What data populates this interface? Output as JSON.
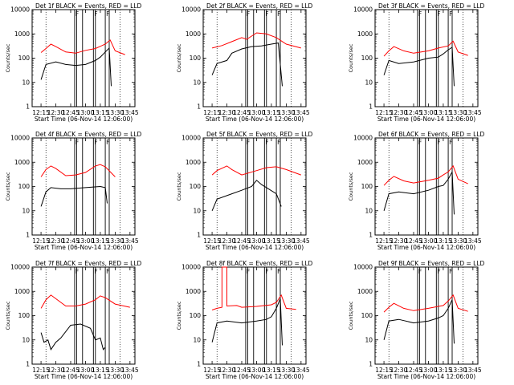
{
  "page": {
    "background": "#ffffff",
    "event_color": "#000000",
    "lld_color": "#ff0000"
  },
  "common": {
    "x_title": "Start Time (06-Nov-14 12:06:00)",
    "y_title": "Counts/sec",
    "x_ticks": [
      "12:15",
      "12:30",
      "12:45",
      "13:00",
      "13:15",
      "13:30",
      "13:45"
    ],
    "y_ticks": [
      "1",
      "10",
      "100",
      "1000",
      "10000"
    ]
  },
  "chart_data": [
    {
      "type": "line",
      "title": "Det 1f BLACK = Events, RED = LLD",
      "ylim": [
        1,
        10000
      ],
      "y_scale": "log",
      "flags": [
        "F",
        "F",
        "F"
      ],
      "series": [
        {
          "name": "Events",
          "color": "#000000",
          "x": [
            "12:15",
            "12:20",
            "12:30",
            "12:40",
            "12:50",
            "13:00",
            "13:10",
            "13:15",
            "13:20",
            "13:24",
            "13:26"
          ],
          "values": [
            13,
            55,
            70,
            55,
            50,
            55,
            80,
            110,
            180,
            260,
            7
          ]
        },
        {
          "name": "LLD",
          "color": "#ff0000",
          "x": [
            "12:15",
            "12:20",
            "12:25",
            "12:30",
            "12:40",
            "12:50",
            "13:00",
            "13:10",
            "13:20",
            "13:25",
            "13:30",
            "13:40"
          ],
          "values": [
            170,
            250,
            380,
            300,
            180,
            160,
            210,
            250,
            380,
            560,
            200,
            140
          ]
        }
      ]
    },
    {
      "type": "line",
      "title": "Det 2f BLACK = Events, RED = LLD",
      "ylim": [
        1,
        10000
      ],
      "y_scale": "log",
      "flags": [
        "F",
        "F",
        "F"
      ],
      "series": [
        {
          "name": "Events",
          "color": "#000000",
          "x": [
            "12:15",
            "12:20",
            "12:30",
            "12:35",
            "12:45",
            "12:55",
            "13:05",
            "13:15",
            "13:22",
            "13:26"
          ],
          "values": [
            20,
            60,
            80,
            160,
            240,
            300,
            320,
            380,
            420,
            7
          ]
        },
        {
          "name": "LLD",
          "color": "#ff0000",
          "x": [
            "12:15",
            "12:25",
            "12:35",
            "12:45",
            "12:50",
            "13:00",
            "13:10",
            "13:20",
            "13:30",
            "13:45"
          ],
          "values": [
            260,
            330,
            480,
            700,
            600,
            1100,
            1000,
            700,
            380,
            260
          ]
        }
      ]
    },
    {
      "type": "line",
      "title": "Det 3f BLACK = Events, RED = LLD",
      "ylim": [
        1,
        10000
      ],
      "y_scale": "log",
      "flags": [
        "F",
        "F",
        "F"
      ],
      "series": [
        {
          "name": "Events",
          "color": "#000000",
          "x": [
            "12:15",
            "12:20",
            "12:30",
            "12:45",
            "13:00",
            "13:10",
            "13:15",
            "13:20",
            "13:24",
            "13:26"
          ],
          "values": [
            20,
            80,
            60,
            70,
            100,
            110,
            150,
            220,
            280,
            7
          ]
        },
        {
          "name": "LLD",
          "color": "#ff0000",
          "x": [
            "12:15",
            "12:20",
            "12:25",
            "12:35",
            "12:45",
            "13:00",
            "13:10",
            "13:20",
            "13:25",
            "13:30",
            "13:40"
          ],
          "values": [
            120,
            200,
            300,
            200,
            160,
            200,
            260,
            320,
            500,
            180,
            130
          ]
        }
      ]
    },
    {
      "type": "line",
      "title": "Det 4f BLACK = Events, RED = LLD",
      "ylim": [
        1,
        10000
      ],
      "y_scale": "log",
      "flags": [
        "F",
        "F",
        "F"
      ],
      "series": [
        {
          "name": "Events",
          "color": "#000000",
          "x": [
            "12:15",
            "12:20",
            "12:25",
            "12:35",
            "12:45",
            "13:00",
            "13:15",
            "13:20",
            "13:22"
          ],
          "values": [
            15,
            60,
            90,
            80,
            80,
            90,
            100,
            90,
            20
          ]
        },
        {
          "name": "LLD",
          "color": "#ff0000",
          "x": [
            "12:15",
            "12:20",
            "12:25",
            "12:30",
            "12:40",
            "12:50",
            "13:00",
            "13:10",
            "13:15",
            "13:20",
            "13:30"
          ],
          "values": [
            250,
            500,
            700,
            550,
            280,
            300,
            380,
            700,
            800,
            650,
            250
          ]
        }
      ]
    },
    {
      "type": "line",
      "title": "Det 5f BLACK = Events, RED = LLD",
      "ylim": [
        1,
        10000
      ],
      "y_scale": "log",
      "flags": [
        "F",
        "F",
        "F"
      ],
      "series": [
        {
          "name": "Events",
          "color": "#000000",
          "x": [
            "12:15",
            "12:20",
            "12:35",
            "12:45",
            "12:55",
            "13:00",
            "13:05",
            "13:10",
            "13:20",
            "13:25"
          ],
          "values": [
            10,
            30,
            50,
            70,
            100,
            180,
            120,
            90,
            50,
            15
          ]
        },
        {
          "name": "LLD",
          "color": "#ff0000",
          "x": [
            "12:15",
            "12:20",
            "12:30",
            "12:35",
            "12:45",
            "13:00",
            "13:10",
            "13:20",
            "13:30",
            "13:45"
          ],
          "values": [
            300,
            450,
            700,
            500,
            300,
            450,
            600,
            650,
            500,
            300
          ]
        }
      ]
    },
    {
      "type": "line",
      "title": "Det 6f BLACK = Events, RED = LLD",
      "ylim": [
        1,
        10000
      ],
      "y_scale": "log",
      "flags": [
        "F",
        "F",
        "F"
      ],
      "series": [
        {
          "name": "Events",
          "color": "#000000",
          "x": [
            "12:15",
            "12:20",
            "12:30",
            "12:45",
            "13:00",
            "13:10",
            "13:15",
            "13:20",
            "13:24",
            "13:26"
          ],
          "values": [
            10,
            50,
            60,
            50,
            70,
            100,
            110,
            200,
            400,
            7
          ]
        },
        {
          "name": "LLD",
          "color": "#ff0000",
          "x": [
            "12:15",
            "12:20",
            "12:25",
            "12:35",
            "12:45",
            "13:00",
            "13:10",
            "13:15",
            "13:20",
            "13:25",
            "13:30",
            "13:40"
          ],
          "values": [
            110,
            180,
            260,
            170,
            140,
            180,
            220,
            300,
            400,
            700,
            200,
            130
          ]
        }
      ]
    },
    {
      "type": "line",
      "title": "Det 7f BLACK = Events, RED = LLD",
      "ylim": [
        1,
        10000
      ],
      "y_scale": "log",
      "flags": [
        "F",
        "F",
        "F"
      ],
      "series": [
        {
          "name": "Events",
          "color": "#000000",
          "x": [
            "12:15",
            "12:18",
            "12:22",
            "12:25",
            "12:30",
            "12:35",
            "12:45",
            "12:55",
            "13:05",
            "13:10",
            "13:15",
            "13:18",
            "13:20"
          ],
          "values": [
            20,
            8,
            10,
            4,
            8,
            12,
            40,
            45,
            30,
            10,
            12,
            4,
            5
          ]
        },
        {
          "name": "LLD",
          "color": "#ff0000",
          "x": [
            "12:15",
            "12:20",
            "12:25",
            "12:30",
            "12:40",
            "12:50",
            "13:00",
            "13:10",
            "13:15",
            "13:20",
            "13:30",
            "13:45"
          ],
          "values": [
            200,
            450,
            700,
            500,
            250,
            250,
            300,
            450,
            650,
            550,
            300,
            220
          ]
        }
      ]
    },
    {
      "type": "line",
      "title": "Det 8f BLACK = Events, RED = LLD",
      "ylim": [
        1,
        10000
      ],
      "y_scale": "log",
      "flags": [
        "F",
        "F",
        "F"
      ],
      "series": [
        {
          "name": "Events",
          "color": "#000000",
          "x": [
            "12:15",
            "12:20",
            "12:30",
            "12:45",
            "13:00",
            "13:10",
            "13:15",
            "13:20",
            "13:24",
            "13:26"
          ],
          "values": [
            8,
            50,
            60,
            50,
            60,
            70,
            90,
            200,
            500,
            6
          ]
        },
        {
          "name": "LLD",
          "color": "#ff0000",
          "x": [
            "12:15",
            "12:20",
            "12:25",
            "12:25",
            "12:30",
            "12:30",
            "12:40",
            "12:45",
            "13:00",
            "13:15",
            "13:20",
            "13:25",
            "13:30",
            "13:40"
          ],
          "values": [
            170,
            200,
            220,
            10000,
            10000,
            250,
            260,
            220,
            240,
            280,
            350,
            700,
            200,
            180
          ]
        }
      ]
    },
    {
      "type": "line",
      "title": "Det 9f BLACK = Events, RED = LLD",
      "ylim": [
        1,
        10000
      ],
      "y_scale": "log",
      "flags": [
        "F",
        "F",
        "F"
      ],
      "series": [
        {
          "name": "Events",
          "color": "#000000",
          "x": [
            "12:15",
            "12:20",
            "12:30",
            "12:45",
            "13:00",
            "13:10",
            "13:15",
            "13:20",
            "13:24",
            "13:26"
          ],
          "values": [
            10,
            60,
            70,
            50,
            60,
            80,
            100,
            200,
            450,
            7
          ]
        },
        {
          "name": "LLD",
          "color": "#ff0000",
          "x": [
            "12:15",
            "12:20",
            "12:25",
            "12:35",
            "12:45",
            "13:00",
            "13:10",
            "13:15",
            "13:20",
            "13:25",
            "13:30",
            "13:40"
          ],
          "values": [
            140,
            220,
            320,
            200,
            160,
            200,
            240,
            260,
            400,
            700,
            200,
            150
          ]
        }
      ]
    }
  ]
}
